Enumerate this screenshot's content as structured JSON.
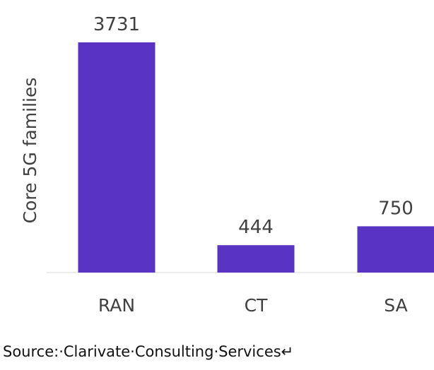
{
  "chart_data": {
    "type": "bar",
    "categories": [
      "RAN",
      "CT",
      "SA"
    ],
    "values": [
      3731,
      444,
      750
    ],
    "data_labels": [
      "3731",
      "444",
      "750"
    ],
    "title": "",
    "xlabel": "",
    "ylabel": "Core 5G families",
    "ylim": [
      0,
      3731
    ],
    "grid": false,
    "legend": "none"
  },
  "colors": {
    "bar": "#5933c4",
    "axis": "#d9d9d9",
    "text": "#404040"
  },
  "source_text": "Source:·Clarivate·Consulting·Services↵"
}
